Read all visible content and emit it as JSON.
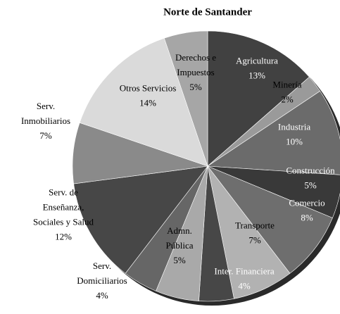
{
  "chart_data": {
    "type": "pie",
    "title": "Norte de Santander",
    "categories": [
      [
        "Agricultura"
      ],
      [
        "Minería"
      ],
      [
        "Industria"
      ],
      [
        "Construcción"
      ],
      [
        "Comercio"
      ],
      [
        "Transporte"
      ],
      [
        "Inter. Financiera"
      ],
      [
        "Admn.",
        "Pública"
      ],
      [
        "Serv.",
        "Domiciliarios"
      ],
      [
        "Serv. de",
        "Enseñanza,",
        "Sociales y Salud"
      ],
      [
        "Serv.",
        "Inmobiliarios"
      ],
      [
        "Otros Servicios"
      ],
      [
        "Derechos e",
        "Impuestos"
      ]
    ],
    "values": [
      13,
      2,
      10,
      5,
      8,
      7,
      4,
      5,
      4,
      12,
      7,
      14,
      5
    ],
    "value_labels": [
      "13%",
      "2%",
      "10%",
      "5%",
      "8%",
      "7%",
      "4%",
      "5%",
      "4%",
      "12%",
      "7%",
      "14%",
      "5%"
    ],
    "colors": [
      "#414141",
      "#9a9a9a",
      "#6b6b6b",
      "#393939",
      "#6e6e6e",
      "#b2b2b2",
      "#474747",
      "#a9a9a9",
      "#666666",
      "#474747",
      "#8a8a8a",
      "#dadada",
      "#a6a6a6"
    ]
  }
}
